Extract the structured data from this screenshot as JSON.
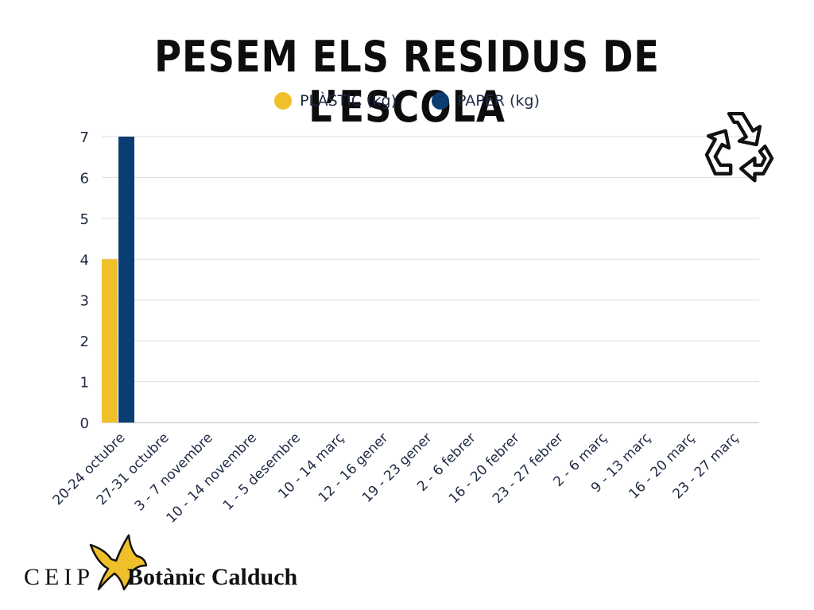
{
  "chart_data": {
    "type": "bar",
    "title": "PESEM ELS RESIDUS DE L’ESCOLA",
    "categories": [
      "20-24 octubre",
      "27-31 octubre",
      "3 - 7 novembre",
      "10 - 14 novembre",
      "1 - 5 desembre",
      "10 - 14 març",
      "12 - 16 gener",
      "19 - 23 gener",
      "2 - 6 febrer",
      "16 - 20 febrer",
      "23 - 27 febrer",
      "2 - 6 març",
      "9 - 13 març",
      "16 - 20 març",
      "23 - 27 març"
    ],
    "series": [
      {
        "name": "PLÀSTIC (kg)",
        "color": "#f0c02b",
        "values": [
          4,
          null,
          null,
          null,
          null,
          null,
          null,
          null,
          null,
          null,
          null,
          null,
          null,
          null,
          null
        ]
      },
      {
        "name": "PAPER (kg)",
        "color": "#0b3d72",
        "values": [
          7,
          null,
          null,
          null,
          null,
          null,
          null,
          null,
          null,
          null,
          null,
          null,
          null,
          null,
          null
        ]
      }
    ],
    "ylim": [
      0,
      7
    ],
    "yticks": [
      0,
      1,
      2,
      3,
      4,
      5,
      6,
      7
    ],
    "grid": true,
    "legend_position": "top"
  },
  "icons": {
    "recycle": "recycle-icon",
    "logo_mark": "star-logo-icon"
  },
  "footer": {
    "school_prefix": "CEIP",
    "school_name": "Botànic Calduch"
  }
}
